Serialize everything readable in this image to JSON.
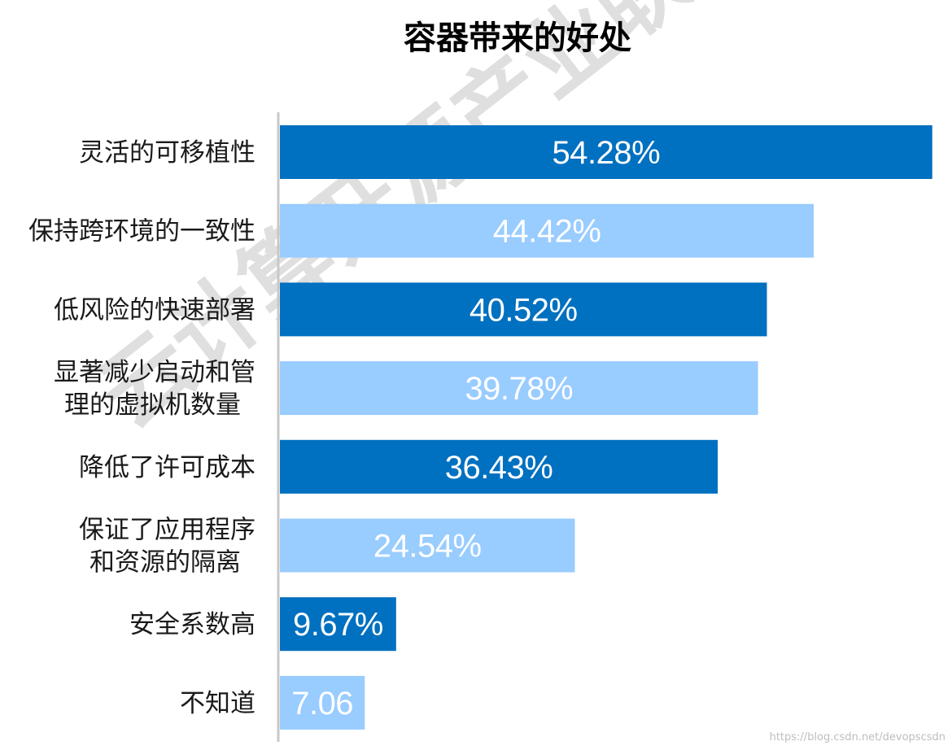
{
  "chart_data": {
    "type": "bar",
    "orientation": "horizontal",
    "title": "容器带来的好处",
    "categories": [
      [
        "灵活的可移植性"
      ],
      [
        "保持跨环境的一致性"
      ],
      [
        "低风险的快速部署"
      ],
      [
        "显著减少启动和管",
        "理的虚拟机数量"
      ],
      [
        "降低了许可成本"
      ],
      [
        "保证了应用程序",
        "和资源的隔离"
      ],
      [
        "安全系数高"
      ],
      [
        "不知道"
      ]
    ],
    "values": [
      54.28,
      44.42,
      40.52,
      39.78,
      36.43,
      24.54,
      9.67,
      7.06
    ],
    "value_labels": [
      "54.28%",
      "44.42%",
      "40.52%",
      "39.78%",
      "36.43%",
      "24.54%",
      "9.67%",
      "7.06"
    ],
    "xlim": [
      0,
      54.5
    ],
    "grid": false,
    "legend": "none",
    "colors": {
      "dark": "#0070C0",
      "light": "#99CCFF",
      "axis": "#c8c8c8"
    }
  },
  "watermark": "云计算开源产业联盟",
  "credit": "https://blog.csdn.net/devopscsdn"
}
